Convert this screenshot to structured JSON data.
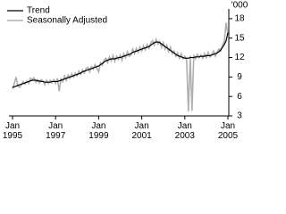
{
  "chart_data": {
    "type": "line",
    "y_label": "'000",
    "x": [
      "1995-01",
      "1995-02",
      "1995-03",
      "1995-04",
      "1995-05",
      "1995-06",
      "1995-07",
      "1995-08",
      "1995-09",
      "1995-10",
      "1995-11",
      "1995-12",
      "1996-01",
      "1996-02",
      "1996-03",
      "1996-04",
      "1996-05",
      "1996-06",
      "1996-07",
      "1996-08",
      "1996-09",
      "1996-10",
      "1996-11",
      "1996-12",
      "1997-01",
      "1997-02",
      "1997-03",
      "1997-04",
      "1997-05",
      "1997-06",
      "1997-07",
      "1997-08",
      "1997-09",
      "1997-10",
      "1997-11",
      "1997-12",
      "1998-01",
      "1998-02",
      "1998-03",
      "1998-04",
      "1998-05",
      "1998-06",
      "1998-07",
      "1998-08",
      "1998-09",
      "1998-10",
      "1998-11",
      "1998-12",
      "1999-01",
      "1999-02",
      "1999-03",
      "1999-04",
      "1999-05",
      "1999-06",
      "1999-07",
      "1999-08",
      "1999-09",
      "1999-10",
      "1999-11",
      "1999-12",
      "2000-01",
      "2000-02",
      "2000-03",
      "2000-04",
      "2000-05",
      "2000-06",
      "2000-07",
      "2000-08",
      "2000-09",
      "2000-10",
      "2000-11",
      "2000-12",
      "2001-01",
      "2001-02",
      "2001-03",
      "2001-04",
      "2001-05",
      "2001-06",
      "2001-07",
      "2001-08",
      "2001-09",
      "2001-10",
      "2001-11",
      "2001-12",
      "2002-01",
      "2002-02",
      "2002-03",
      "2002-04",
      "2002-05",
      "2002-06",
      "2002-07",
      "2002-08",
      "2002-09",
      "2002-10",
      "2002-11",
      "2002-12",
      "2003-01",
      "2003-02",
      "2003-03",
      "2003-04",
      "2003-05",
      "2003-06",
      "2003-07",
      "2003-08",
      "2003-09",
      "2003-10",
      "2003-11",
      "2003-12",
      "2004-01",
      "2004-02",
      "2004-03",
      "2004-04",
      "2004-05",
      "2004-06",
      "2004-07",
      "2004-08",
      "2004-09",
      "2004-10",
      "2004-11",
      "2004-12",
      "2005-01"
    ],
    "series": [
      {
        "name": "Trend",
        "color": "#000000",
        "values": [
          7.4,
          7.5,
          7.6,
          7.7,
          7.8,
          7.9,
          8.0,
          8.1,
          8.2,
          8.3,
          8.4,
          8.5,
          8.5,
          8.5,
          8.4,
          8.4,
          8.3,
          8.3,
          8.2,
          8.2,
          8.2,
          8.2,
          8.3,
          8.3,
          8.3,
          8.3,
          8.4,
          8.5,
          8.6,
          8.7,
          8.8,
          8.9,
          9.0,
          9.1,
          9.2,
          9.3,
          9.4,
          9.5,
          9.6,
          9.8,
          9.9,
          10.0,
          10.1,
          10.2,
          10.3,
          10.4,
          10.5,
          10.6,
          10.7,
          10.9,
          11.1,
          11.3,
          11.5,
          11.6,
          11.7,
          11.8,
          11.8,
          11.8,
          11.9,
          12.0,
          12.0,
          12.1,
          12.2,
          12.3,
          12.4,
          12.5,
          12.6,
          12.8,
          12.9,
          13.0,
          13.1,
          13.2,
          13.3,
          13.4,
          13.5,
          13.6,
          13.7,
          13.9,
          14.1,
          14.3,
          14.4,
          14.4,
          14.3,
          14.1,
          13.9,
          13.7,
          13.5,
          13.3,
          13.1,
          12.9,
          12.7,
          12.5,
          12.3,
          12.2,
          12.1,
          12.0,
          11.9,
          11.9,
          11.9,
          12.0,
          12.0,
          12.0,
          12.1,
          12.1,
          12.1,
          12.2,
          12.2,
          12.2,
          12.3,
          12.3,
          12.3,
          12.4,
          12.5,
          12.6,
          12.7,
          12.9,
          13.2,
          13.6,
          14.0,
          14.6,
          15.8
        ]
      },
      {
        "name": "Seasonally Adjusted",
        "color": "#b0b0b0",
        "values": [
          7.2,
          8.0,
          9.0,
          7.6,
          7.4,
          7.8,
          8.3,
          7.9,
          8.4,
          8.0,
          8.8,
          8.6,
          8.9,
          8.2,
          8.6,
          8.1,
          8.6,
          8.4,
          7.8,
          8.5,
          8.0,
          8.5,
          8.1,
          8.6,
          8.0,
          8.8,
          6.8,
          8.7,
          8.3,
          9.2,
          8.5,
          9.3,
          8.8,
          9.5,
          9.0,
          9.6,
          9.2,
          9.9,
          9.4,
          10.1,
          9.6,
          10.3,
          10.5,
          9.8,
          10.6,
          10.2,
          10.9,
          10.3,
          9.8,
          11.2,
          10.8,
          11.6,
          11.9,
          11.2,
          12.1,
          11.5,
          12.3,
          11.4,
          12.2,
          11.7,
          12.4,
          11.6,
          12.6,
          12.0,
          12.9,
          12.2,
          12.4,
          13.3,
          12.6,
          13.4,
          12.8,
          13.6,
          13.0,
          13.8,
          13.2,
          14.0,
          13.4,
          14.2,
          14.6,
          13.9,
          14.8,
          14.1,
          14.5,
          13.6,
          14.3,
          13.3,
          13.9,
          12.9,
          13.6,
          12.6,
          13.0,
          12.2,
          12.7,
          11.9,
          12.6,
          11.8,
          12.2,
          11.6,
          3.7,
          12.3,
          3.8,
          12.4,
          11.8,
          12.5,
          12.0,
          12.4,
          11.9,
          12.6,
          12.0,
          12.8,
          12.1,
          12.5,
          13.0,
          12.2,
          12.9,
          13.3,
          13.0,
          13.9,
          14.5,
          17.4,
          15.6
        ]
      }
    ],
    "xlim": [
      "1995-01",
      "2005-01"
    ],
    "xticks": [
      {
        "value": "1995-01",
        "label": "Jan 1995"
      },
      {
        "value": "1997-01",
        "label": "Jan 1997"
      },
      {
        "value": "1999-01",
        "label": "Jan 1999"
      },
      {
        "value": "2001-01",
        "label": "Jan 2001"
      },
      {
        "value": "2003-01",
        "label": "Jan 2003"
      },
      {
        "value": "2005-01",
        "label": "Jan 2005"
      }
    ],
    "ylim": [
      3,
      19.5
    ],
    "yticks": [
      3,
      6,
      9,
      12,
      15,
      18
    ],
    "legend": "top-left"
  }
}
